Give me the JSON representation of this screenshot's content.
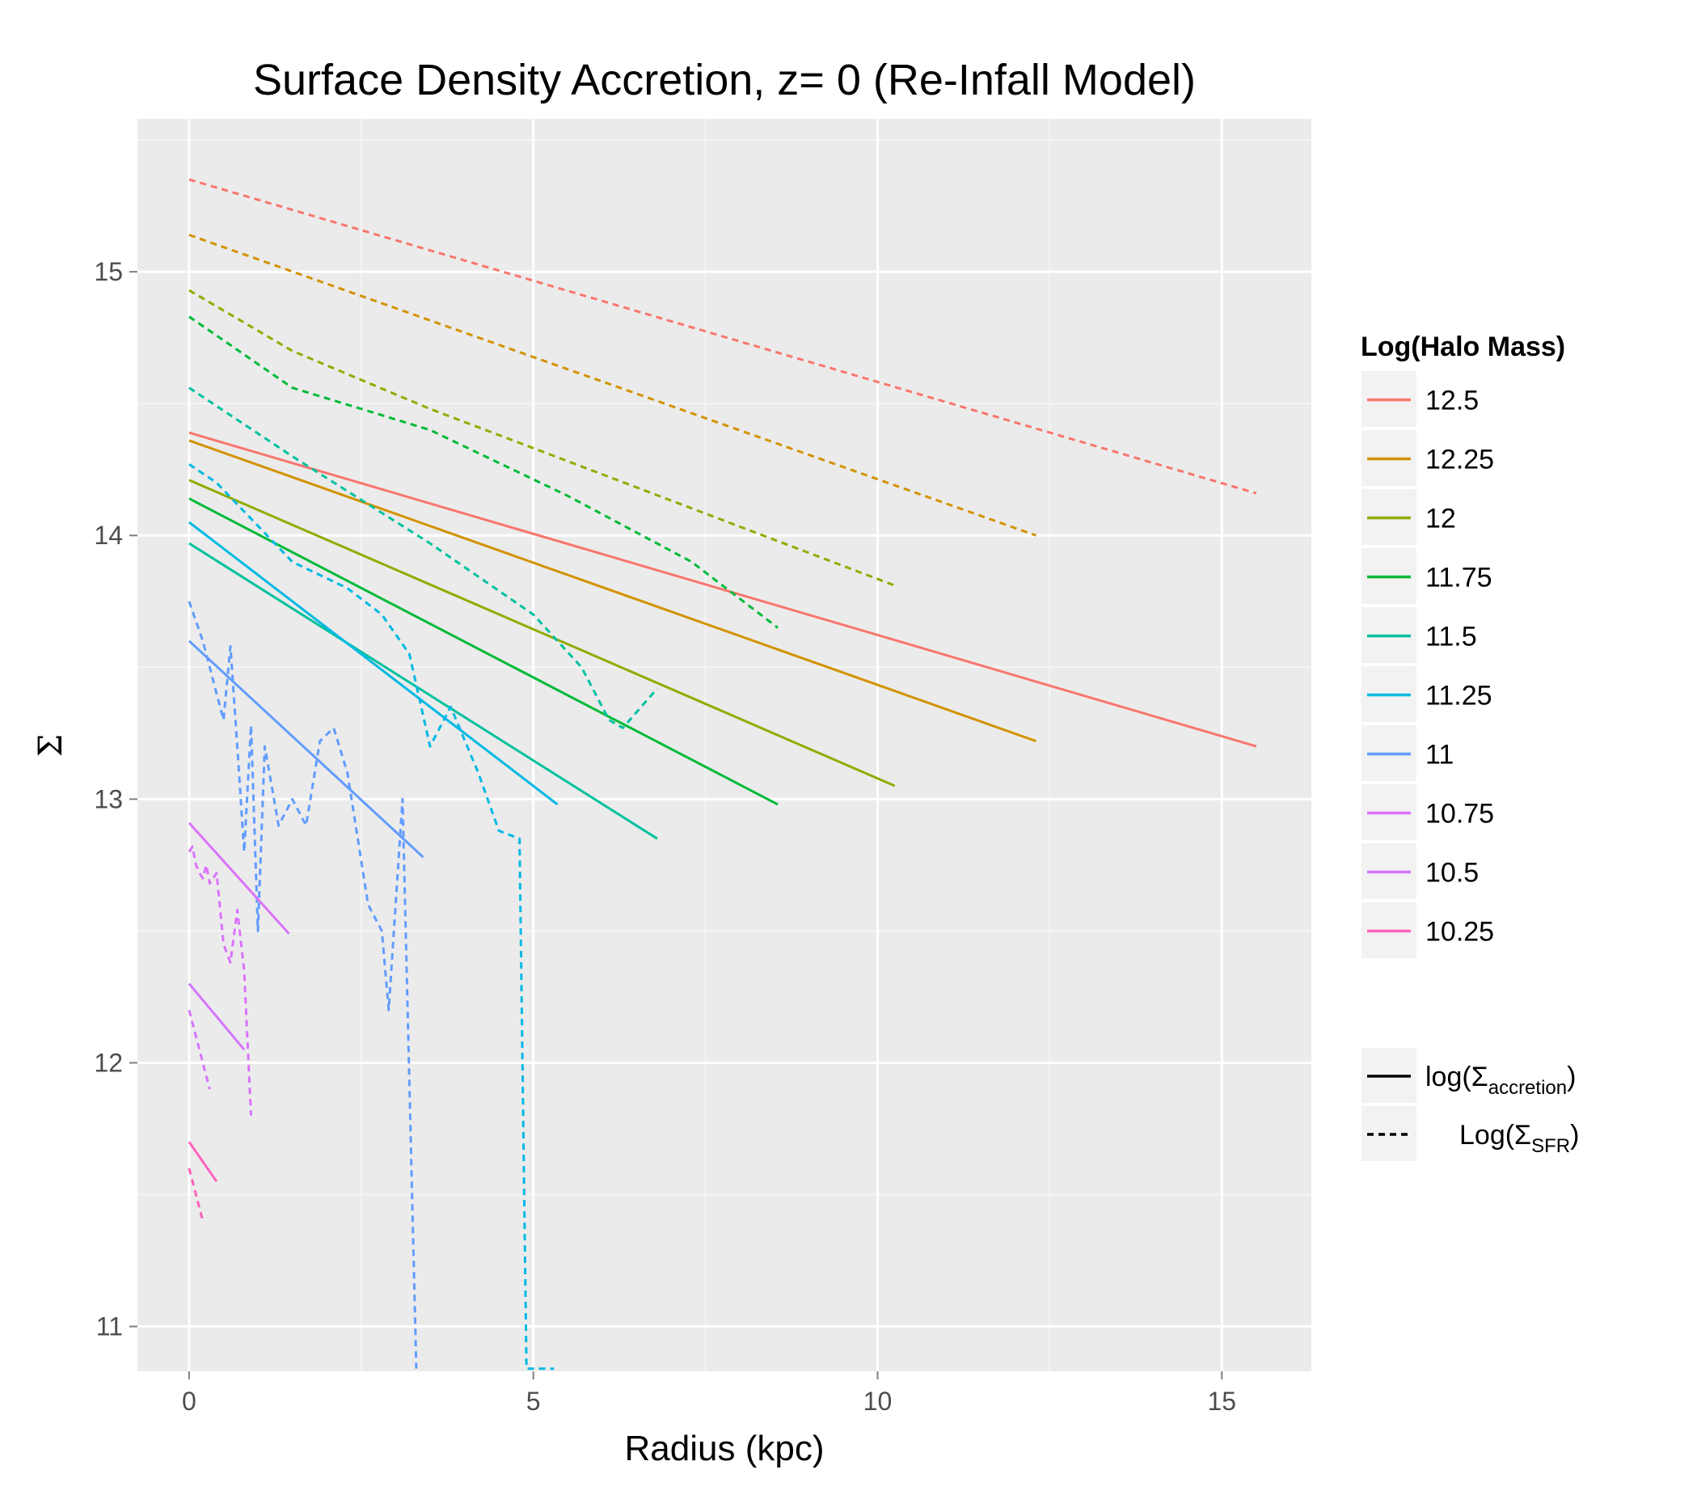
{
  "chart_data": {
    "type": "line",
    "title": "Surface Density Accretion, z= 0 (Re-Infall Model)",
    "xlabel": "Radius (kpc)",
    "ylabel": "Σ",
    "xlim": [
      -0.75,
      16.3
    ],
    "ylim": [
      10.83,
      15.58
    ],
    "x_ticks": [
      0,
      5,
      10,
      15
    ],
    "y_ticks": [
      11,
      12,
      13,
      14,
      15
    ],
    "x_tick_labels": [
      "0",
      "5",
      "10",
      "15"
    ],
    "y_tick_labels": [
      "11",
      "12",
      "13",
      "14",
      "15"
    ],
    "grid": true,
    "legend_position": "right",
    "legend_color_title": "Log(Halo Mass)",
    "legend_linetype": [
      {
        "linetype": "solid",
        "prefix": "log(Σ",
        "subscript": "accretion",
        "suffix": ")"
      },
      {
        "linetype": "dashed",
        "prefix": "Log(Σ",
        "subscript": "SFR",
        "suffix": ")"
      }
    ],
    "series": [
      {
        "name": "12.5",
        "color": "#F8766D",
        "accretion": {
          "x": [
            0,
            15.5
          ],
          "y": [
            14.39,
            13.2
          ]
        },
        "sfr": {
          "x": [
            0,
            15.5
          ],
          "y": [
            15.35,
            14.16
          ]
        }
      },
      {
        "name": "12.25",
        "color": "#D39200",
        "accretion": {
          "x": [
            0,
            12.3
          ],
          "y": [
            14.36,
            13.22
          ]
        },
        "sfr": {
          "x": [
            0,
            12.3
          ],
          "y": [
            15.14,
            14.0
          ]
        }
      },
      {
        "name": "12",
        "color": "#93AA00",
        "accretion": {
          "x": [
            0,
            10.25
          ],
          "y": [
            14.21,
            13.05
          ]
        },
        "sfr": {
          "x": [
            0,
            1.5,
            3.5,
            10.25
          ],
          "y": [
            14.93,
            14.7,
            14.48,
            13.81
          ]
        }
      },
      {
        "name": "11.75",
        "color": "#00BA38",
        "accretion": {
          "x": [
            0,
            8.55
          ],
          "y": [
            14.14,
            12.98
          ]
        },
        "sfr": {
          "x": [
            0,
            1.5,
            3.5,
            5.5,
            7.3,
            8.55
          ],
          "y": [
            14.83,
            14.56,
            14.4,
            14.15,
            13.9,
            13.65
          ]
        }
      },
      {
        "name": "11.5",
        "color": "#00C19F",
        "accretion": {
          "x": [
            0,
            6.8
          ],
          "y": [
            13.97,
            12.85
          ]
        },
        "sfr": {
          "x": [
            0,
            1.5,
            3.5,
            5.0,
            5.7,
            6.1,
            6.3,
            6.8
          ],
          "y": [
            14.56,
            14.3,
            13.97,
            13.7,
            13.5,
            13.3,
            13.27,
            13.42
          ]
        }
      },
      {
        "name": "11.25",
        "color": "#00B9E3",
        "accretion": {
          "x": [
            0,
            5.35
          ],
          "y": [
            14.05,
            12.98
          ]
        },
        "sfr": {
          "x": [
            0,
            0.4,
            1.5,
            2.3,
            2.8,
            3.2,
            3.5,
            3.8,
            4.2,
            4.5,
            4.8,
            4.9,
            5.3
          ],
          "y": [
            14.27,
            14.2,
            13.9,
            13.8,
            13.7,
            13.55,
            13.2,
            13.35,
            13.1,
            12.88,
            12.85,
            10.84,
            10.84
          ]
        }
      },
      {
        "name": "11",
        "color": "#619CFF",
        "accretion": {
          "x": [
            0,
            3.4
          ],
          "y": [
            13.6,
            12.78
          ]
        },
        "sfr": {
          "x": [
            0,
            0.2,
            0.3,
            0.4,
            0.5,
            0.6,
            0.7,
            0.8,
            0.9,
            1.0,
            1.1,
            1.3,
            1.5,
            1.7,
            1.9,
            2.1,
            2.3,
            2.6,
            2.8,
            2.9,
            3.1,
            3.3
          ],
          "y": [
            13.75,
            13.6,
            13.5,
            13.4,
            13.3,
            13.58,
            13.2,
            12.8,
            13.28,
            12.5,
            13.2,
            12.9,
            13.0,
            12.9,
            13.22,
            13.27,
            13.1,
            12.6,
            12.5,
            12.2,
            13.0,
            10.84
          ]
        }
      },
      {
        "name": "10.75",
        "color": "#DB72FB",
        "accretion": {
          "x": [
            0,
            1.45
          ],
          "y": [
            12.91,
            12.49
          ]
        },
        "sfr": {
          "x": [
            0,
            0.05,
            0.1,
            0.15,
            0.2,
            0.25,
            0.3,
            0.35,
            0.4,
            0.5,
            0.6,
            0.7,
            0.8,
            0.9
          ],
          "y": [
            12.8,
            12.82,
            12.75,
            12.72,
            12.7,
            12.75,
            12.68,
            12.7,
            12.72,
            12.45,
            12.38,
            12.58,
            12.35,
            11.8
          ]
        }
      },
      {
        "name": "10.5",
        "color": "#D575FE",
        "accretion": {
          "x": [
            0,
            0.8
          ],
          "y": [
            12.3,
            12.05
          ]
        },
        "sfr": {
          "x": [
            0,
            0.1,
            0.2,
            0.3
          ],
          "y": [
            12.2,
            12.1,
            12.0,
            11.9
          ]
        }
      },
      {
        "name": "10.25",
        "color": "#FF62BC",
        "accretion": {
          "x": [
            0,
            0.4
          ],
          "y": [
            11.7,
            11.55
          ]
        },
        "sfr": {
          "x": [
            0,
            0.1,
            0.2
          ],
          "y": [
            11.6,
            11.5,
            11.4
          ]
        }
      }
    ]
  }
}
